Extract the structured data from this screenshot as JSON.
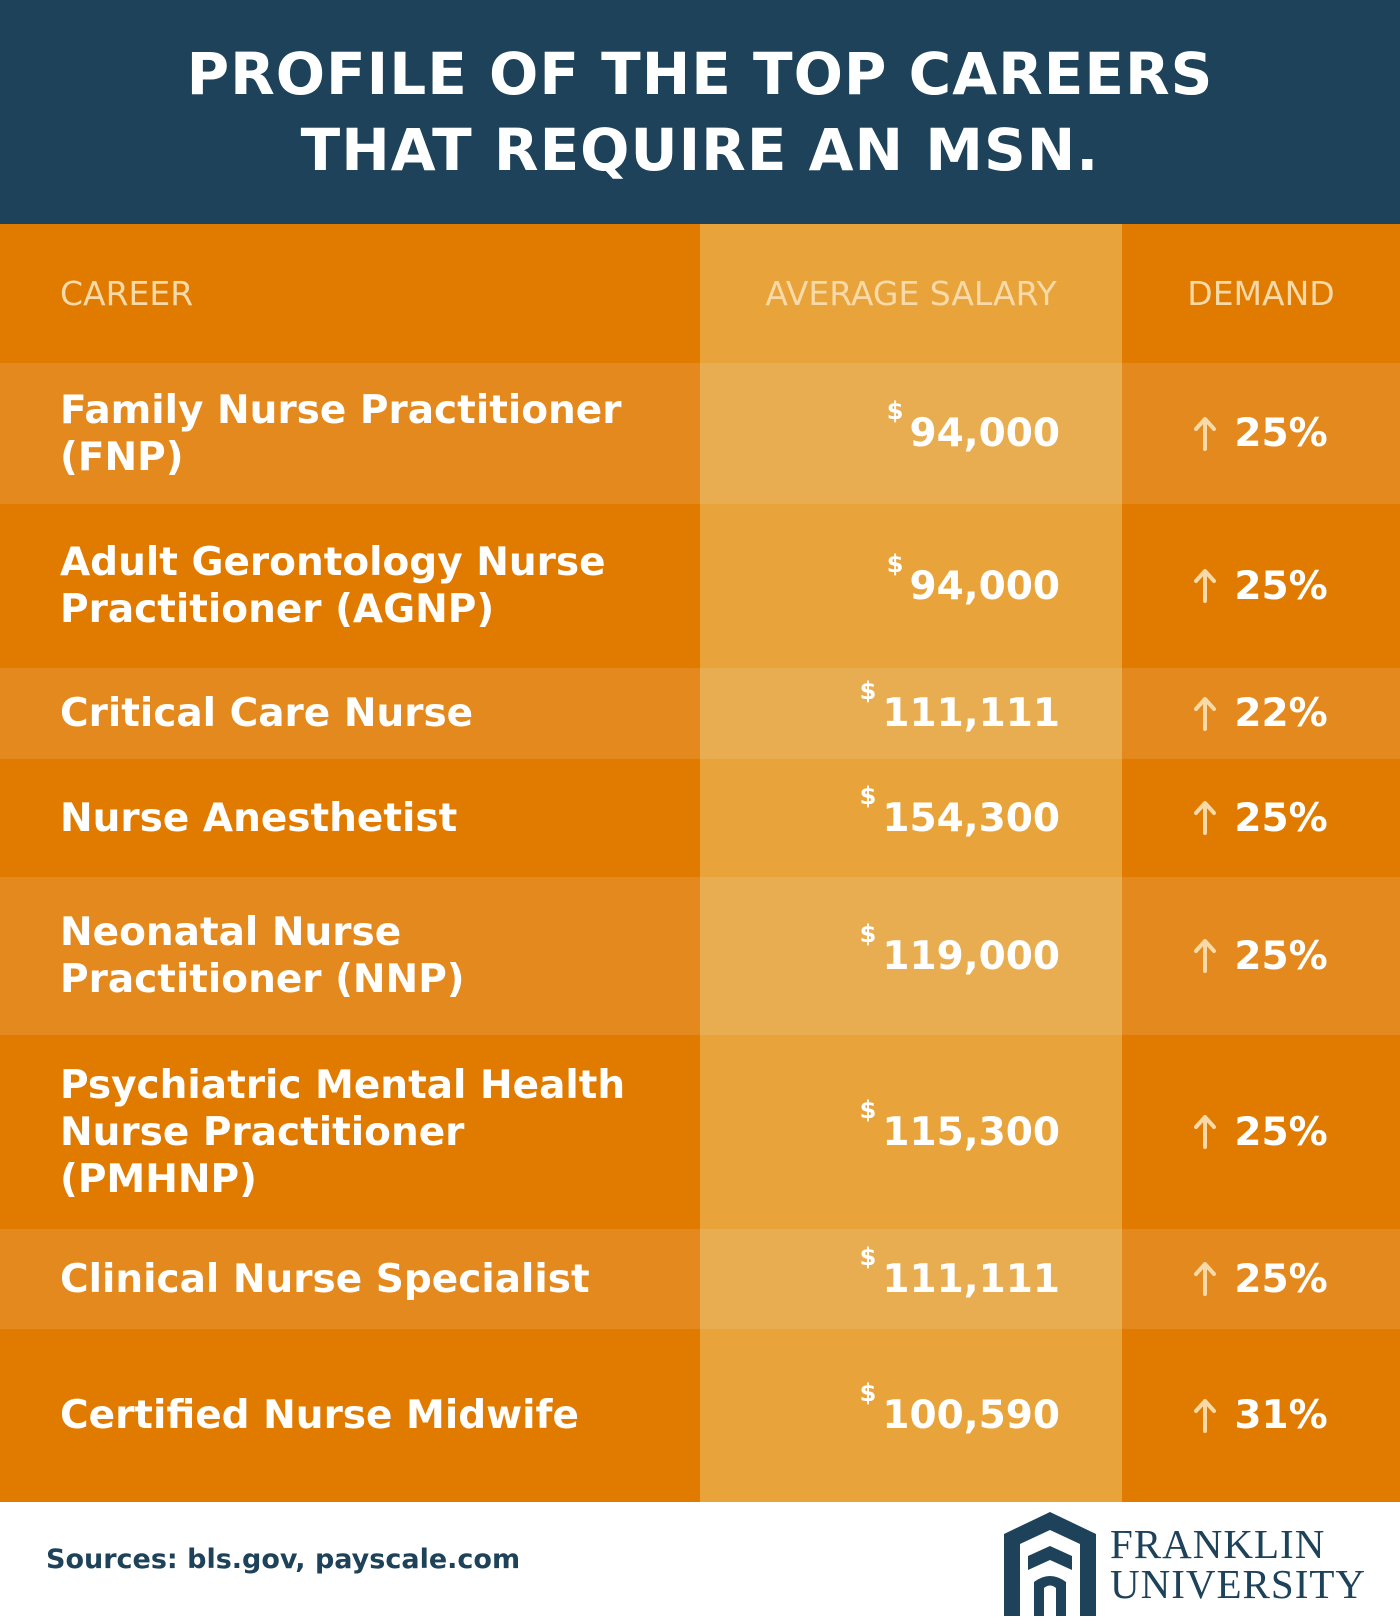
{
  "header": {
    "title": "PROFILE OF THE TOP CAREERS THAT REQUIRE AN MSN."
  },
  "table": {
    "columns": [
      "CAREER",
      "AVERAGE SALARY",
      "DEMAND"
    ],
    "rows": [
      {
        "career": "Family Nurse Practitioner (FNP)",
        "currency": "$",
        "salary": "94,000",
        "demand": "25%"
      },
      {
        "career": "Adult Gerontology Nurse Practitioner (AGNP)",
        "currency": "$",
        "salary": "94,000",
        "demand": "25%"
      },
      {
        "career": "Critical Care Nurse",
        "currency": "$",
        "salary": "111,111",
        "demand": "22%"
      },
      {
        "career": "Nurse Anesthetist",
        "currency": "$",
        "salary": "154,300",
        "demand": "25%"
      },
      {
        "career": "Neonatal Nurse Practitioner (NNP)",
        "currency": "$",
        "salary": "119,000",
        "demand": "25%"
      },
      {
        "career": "Psychiatric Mental Health Nurse Practitioner (PMHNP)",
        "currency": "$",
        "salary": "115,300",
        "demand": "25%"
      },
      {
        "career": "Clinical Nurse Specialist",
        "currency": "$",
        "salary": "111,111",
        "demand": "25%"
      },
      {
        "career": "Certified Nurse Midwife",
        "currency": "$",
        "salary": "100,590",
        "demand": "31%"
      }
    ]
  },
  "footer": {
    "sources": "Sources: bls.gov, payscale.com",
    "logo": [
      "FRANKLIN",
      "UNIVERSITY"
    ]
  }
}
